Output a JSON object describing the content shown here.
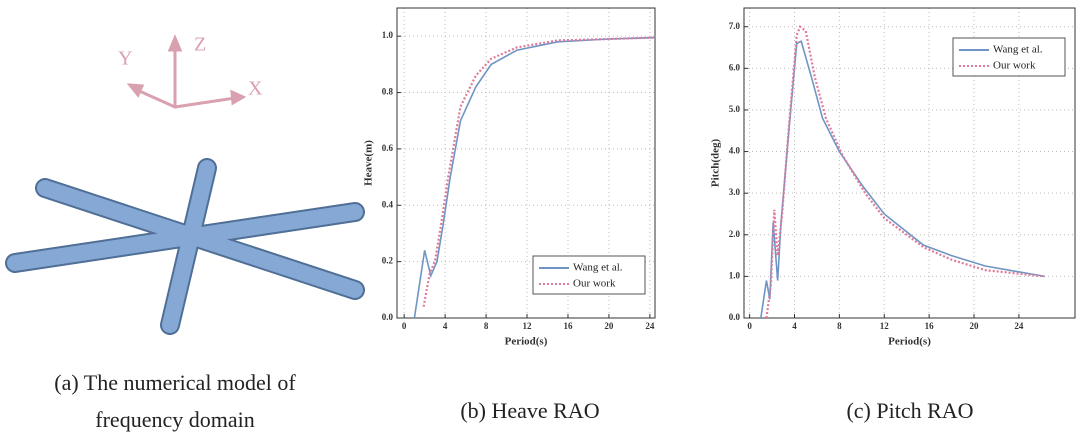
{
  "model": {
    "axes": [
      "Y",
      "Z",
      "X"
    ],
    "caption": "(a) The numerical model of frequency domain"
  },
  "chart_data": [
    {
      "type": "line",
      "caption": "(b) Heave RAO",
      "x_label": "Period(s)",
      "y_label": "Heave(m)",
      "xlim": [
        -0.7,
        24.5
      ],
      "ylim": [
        0,
        1.1
      ],
      "xticks": [
        0,
        4,
        8,
        12,
        16,
        20,
        24
      ],
      "yticks": [
        {
          "value": 0,
          "label": "0.0"
        },
        {
          "value": 0.2,
          "label": "0.2"
        },
        {
          "value": 0.4,
          "label": "0.4"
        },
        {
          "value": 0.6,
          "label": "0.6"
        },
        {
          "value": 0.8,
          "label": "0.8"
        },
        {
          "value": 1.0,
          "label": "1.0"
        }
      ],
      "grid": true,
      "legend": "lower right",
      "series": [
        {
          "name": "Wang et al.",
          "color": "#6f95c4",
          "line_style": "solid",
          "x": [
            1.0,
            1.5,
            2.0,
            2.6,
            3.2,
            3.8,
            4.5,
            5.5,
            7.0,
            8.5,
            11,
            15,
            20,
            24.5
          ],
          "values": [
            0,
            0.12,
            0.24,
            0.15,
            0.2,
            0.33,
            0.5,
            0.7,
            0.82,
            0.9,
            0.95,
            0.98,
            0.99,
            0.995
          ]
        },
        {
          "name": "Our work",
          "color": "#e07a9a",
          "line_style": "dotted",
          "x": [
            1.9,
            2.5,
            3.0,
            3.6,
            4.3,
            5.5,
            7.0,
            8.5,
            11,
            15,
            20,
            24.5
          ],
          "values": [
            0.04,
            0.16,
            0.2,
            0.33,
            0.5,
            0.75,
            0.86,
            0.92,
            0.96,
            0.985,
            0.99,
            0.995
          ]
        }
      ]
    },
    {
      "type": "line",
      "caption": "(c) Pitch RAO",
      "x_label": "Period(s)",
      "y_label": "Pitch(deg)",
      "xlim": [
        -0.5,
        29
      ],
      "ylim": [
        0,
        7.45
      ],
      "xticks": [
        0,
        4,
        8,
        12,
        16,
        20,
        24
      ],
      "yticks": [
        {
          "value": 0,
          "label": "0.0"
        },
        {
          "value": 1,
          "label": "1.0"
        },
        {
          "value": 2,
          "label": "2.0"
        },
        {
          "value": 3,
          "label": "3.0"
        },
        {
          "value": 4,
          "label": "4.0"
        },
        {
          "value": 5,
          "label": "5.0"
        },
        {
          "value": 6,
          "label": "6.0"
        },
        {
          "value": 7,
          "label": "7.0"
        }
      ],
      "grid": true,
      "legend": "upper right",
      "series": [
        {
          "name": "Wang et al.",
          "color": "#6f95c4",
          "line_style": "solid",
          "x": [
            1.0,
            1.5,
            1.8,
            2.1,
            2.5,
            2.8,
            3.5,
            4.2,
            4.6,
            5.5,
            6.5,
            8,
            10,
            12,
            15.5,
            18,
            21,
            26.3
          ],
          "values": [
            0,
            0.9,
            0.45,
            2.3,
            0.9,
            2.3,
            4.5,
            6.6,
            6.65,
            5.8,
            4.8,
            4.0,
            3.2,
            2.5,
            1.75,
            1.5,
            1.25,
            1.0
          ]
        },
        {
          "name": "Our work",
          "color": "#e07a9a",
          "line_style": "dotted",
          "x": [
            1.5,
            1.9,
            2.2,
            2.5,
            2.9,
            3.5,
            4.2,
            4.5,
            5.0,
            5.8,
            6.8,
            8.3,
            10.3,
            12,
            15.5,
            18,
            21,
            26.3
          ],
          "values": [
            0,
            0.8,
            2.6,
            1.5,
            2.5,
            4.6,
            6.8,
            7.0,
            6.9,
            5.8,
            4.8,
            3.9,
            3.0,
            2.4,
            1.7,
            1.4,
            1.15,
            1.0
          ]
        }
      ]
    }
  ]
}
